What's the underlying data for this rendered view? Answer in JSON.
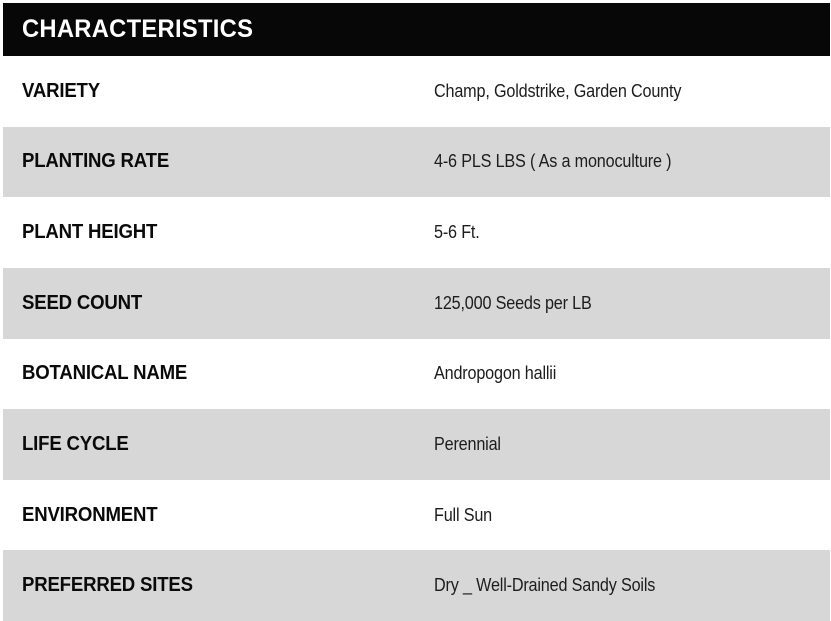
{
  "table": {
    "title": "CHARACTERISTICS",
    "rows": [
      {
        "label": "VARIETY",
        "value": "Champ, Goldstrike, Garden County"
      },
      {
        "label": "PLANTING RATE",
        "value": "4-6 PLS LBS ( As a monoculture )"
      },
      {
        "label": "PLANT HEIGHT",
        "value": "5-6 Ft."
      },
      {
        "label": "SEED COUNT",
        "value": "125,000 Seeds per LB"
      },
      {
        "label": "BOTANICAL NAME",
        "value": "Andropogon hallii"
      },
      {
        "label": "LIFE CYCLE",
        "value": "Perennial"
      },
      {
        "label": "ENVIRONMENT",
        "value": "Full Sun"
      },
      {
        "label": "PREFERRED SITES",
        "value": "Dry _ Well-Drained Sandy Soils"
      }
    ],
    "colors": {
      "header_bg": "#070707",
      "header_text": "#ffffff",
      "alt_row_bg": "#d7d7d7",
      "row_bg": "#ffffff",
      "label_text": "#0a0a0a",
      "value_text": "#1d1d1d"
    }
  }
}
